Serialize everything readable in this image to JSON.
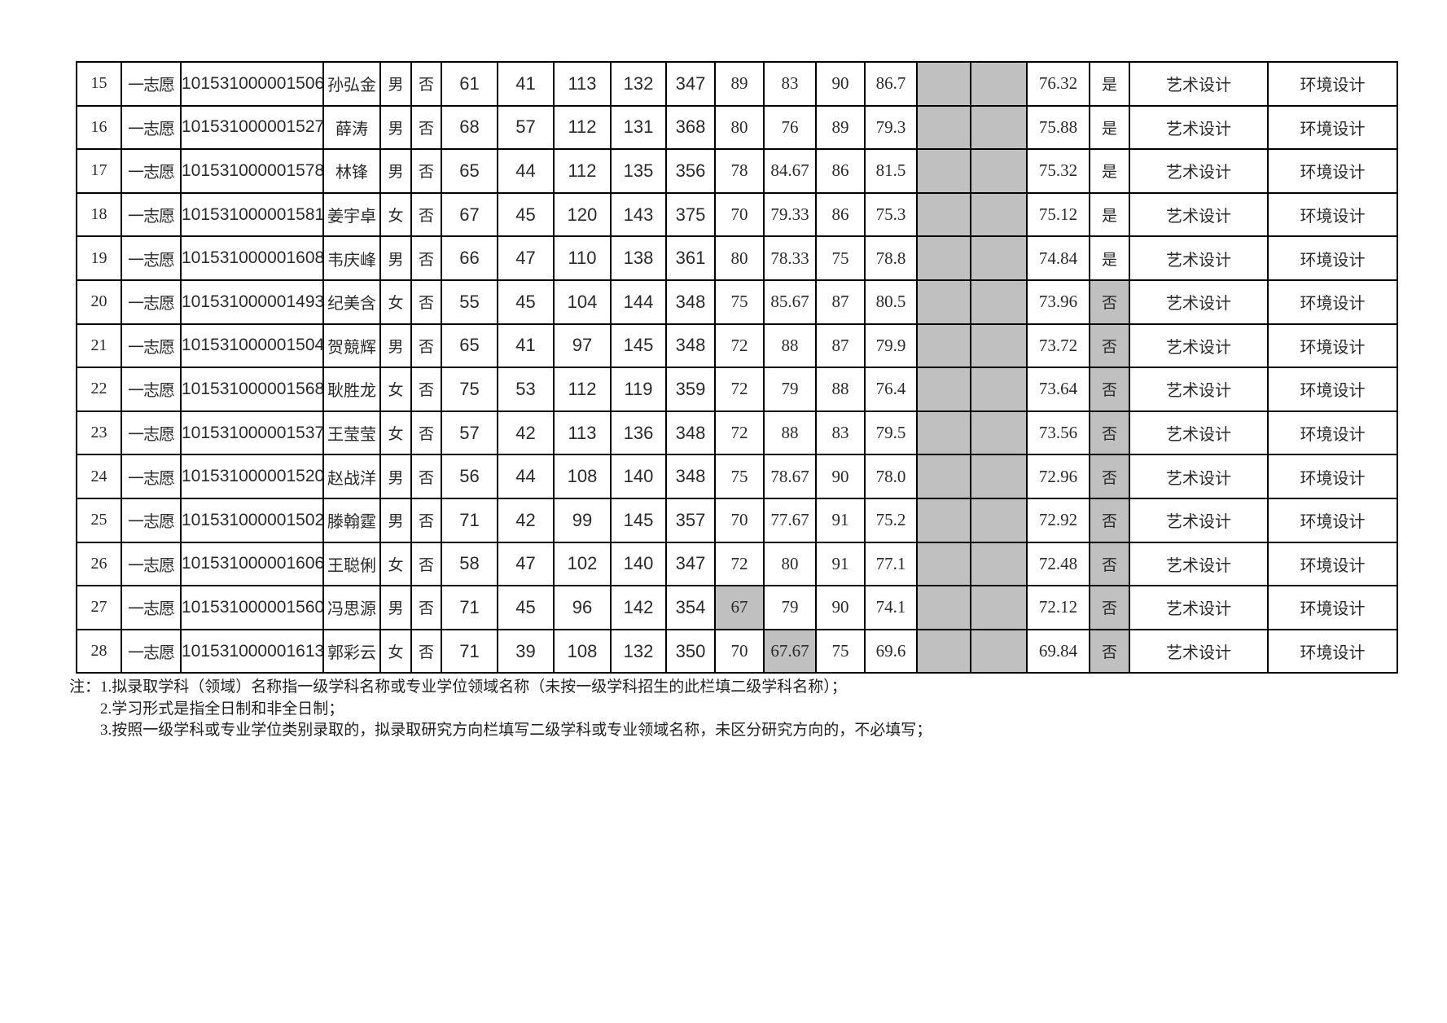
{
  "colors": {
    "cell_highlight": "#c0c0c0",
    "border": "#000000",
    "background": "#ffffff"
  },
  "table": {
    "rows": [
      {
        "no": "15",
        "volunteer": "一志愿",
        "candidate_id": "101531000001506",
        "name": "孙弘金",
        "gender": "男",
        "exempt": "否",
        "initial_scores": [
          "61",
          "41",
          "113",
          "132"
        ],
        "total": "347",
        "reexam_scores": [
          "89",
          "83",
          "90",
          "86.7"
        ],
        "extra": [
          "",
          ""
        ],
        "weighted_total": "76.32",
        "admitted": "是",
        "admitted_highlight": false,
        "reexam_highlight": [],
        "major": "艺术设计",
        "research_direction": "环境设计"
      },
      {
        "no": "16",
        "volunteer": "一志愿",
        "candidate_id": "101531000001527",
        "name": "薛涛",
        "gender": "男",
        "exempt": "否",
        "initial_scores": [
          "68",
          "57",
          "112",
          "131"
        ],
        "total": "368",
        "reexam_scores": [
          "80",
          "76",
          "89",
          "79.3"
        ],
        "extra": [
          "",
          ""
        ],
        "weighted_total": "75.88",
        "admitted": "是",
        "admitted_highlight": false,
        "reexam_highlight": [],
        "major": "艺术设计",
        "research_direction": "环境设计"
      },
      {
        "no": "17",
        "volunteer": "一志愿",
        "candidate_id": "101531000001578",
        "name": "林锋",
        "gender": "男",
        "exempt": "否",
        "initial_scores": [
          "65",
          "44",
          "112",
          "135"
        ],
        "total": "356",
        "reexam_scores": [
          "78",
          "84.67",
          "86",
          "81.5"
        ],
        "extra": [
          "",
          ""
        ],
        "weighted_total": "75.32",
        "admitted": "是",
        "admitted_highlight": false,
        "reexam_highlight": [],
        "major": "艺术设计",
        "research_direction": "环境设计"
      },
      {
        "no": "18",
        "volunteer": "一志愿",
        "candidate_id": "101531000001581",
        "name": "姜宇卓",
        "gender": "女",
        "exempt": "否",
        "initial_scores": [
          "67",
          "45",
          "120",
          "143"
        ],
        "total": "375",
        "reexam_scores": [
          "70",
          "79.33",
          "86",
          "75.3"
        ],
        "extra": [
          "",
          ""
        ],
        "weighted_total": "75.12",
        "admitted": "是",
        "admitted_highlight": false,
        "reexam_highlight": [],
        "major": "艺术设计",
        "research_direction": "环境设计"
      },
      {
        "no": "19",
        "volunteer": "一志愿",
        "candidate_id": "101531000001608",
        "name": "韦庆峰",
        "gender": "男",
        "exempt": "否",
        "initial_scores": [
          "66",
          "47",
          "110",
          "138"
        ],
        "total": "361",
        "reexam_scores": [
          "80",
          "78.33",
          "75",
          "78.8"
        ],
        "extra": [
          "",
          ""
        ],
        "weighted_total": "74.84",
        "admitted": "是",
        "admitted_highlight": false,
        "reexam_highlight": [],
        "major": "艺术设计",
        "research_direction": "环境设计"
      },
      {
        "no": "20",
        "volunteer": "一志愿",
        "candidate_id": "101531000001493",
        "name": "纪美含",
        "gender": "女",
        "exempt": "否",
        "initial_scores": [
          "55",
          "45",
          "104",
          "144"
        ],
        "total": "348",
        "reexam_scores": [
          "75",
          "85.67",
          "87",
          "80.5"
        ],
        "extra": [
          "",
          ""
        ],
        "weighted_total": "73.96",
        "admitted": "否",
        "admitted_highlight": true,
        "reexam_highlight": [],
        "major": "艺术设计",
        "research_direction": "环境设计"
      },
      {
        "no": "21",
        "volunteer": "一志愿",
        "candidate_id": "101531000001504",
        "name": "贺競辉",
        "gender": "男",
        "exempt": "否",
        "initial_scores": [
          "65",
          "41",
          "97",
          "145"
        ],
        "total": "348",
        "reexam_scores": [
          "72",
          "88",
          "87",
          "79.9"
        ],
        "extra": [
          "",
          ""
        ],
        "weighted_total": "73.72",
        "admitted": "否",
        "admitted_highlight": true,
        "reexam_highlight": [],
        "major": "艺术设计",
        "research_direction": "环境设计"
      },
      {
        "no": "22",
        "volunteer": "一志愿",
        "candidate_id": "101531000001568",
        "name": "耿胜龙",
        "gender": "女",
        "exempt": "否",
        "initial_scores": [
          "75",
          "53",
          "112",
          "119"
        ],
        "total": "359",
        "reexam_scores": [
          "72",
          "79",
          "88",
          "76.4"
        ],
        "extra": [
          "",
          ""
        ],
        "weighted_total": "73.64",
        "admitted": "否",
        "admitted_highlight": true,
        "reexam_highlight": [],
        "major": "艺术设计",
        "research_direction": "环境设计"
      },
      {
        "no": "23",
        "volunteer": "一志愿",
        "candidate_id": "101531000001537",
        "name": "王莹莹",
        "gender": "女",
        "exempt": "否",
        "initial_scores": [
          "57",
          "42",
          "113",
          "136"
        ],
        "total": "348",
        "reexam_scores": [
          "72",
          "88",
          "83",
          "79.5"
        ],
        "extra": [
          "",
          ""
        ],
        "weighted_total": "73.56",
        "admitted": "否",
        "admitted_highlight": true,
        "reexam_highlight": [],
        "major": "艺术设计",
        "research_direction": "环境设计"
      },
      {
        "no": "24",
        "volunteer": "一志愿",
        "candidate_id": "101531000001520",
        "name": "赵战洋",
        "gender": "男",
        "exempt": "否",
        "initial_scores": [
          "56",
          "44",
          "108",
          "140"
        ],
        "total": "348",
        "reexam_scores": [
          "75",
          "78.67",
          "90",
          "78.0"
        ],
        "extra": [
          "",
          ""
        ],
        "weighted_total": "72.96",
        "admitted": "否",
        "admitted_highlight": true,
        "reexam_highlight": [],
        "major": "艺术设计",
        "research_direction": "环境设计"
      },
      {
        "no": "25",
        "volunteer": "一志愿",
        "candidate_id": "101531000001502",
        "name": "滕翰霆",
        "gender": "男",
        "exempt": "否",
        "initial_scores": [
          "71",
          "42",
          "99",
          "145"
        ],
        "total": "357",
        "reexam_scores": [
          "70",
          "77.67",
          "91",
          "75.2"
        ],
        "extra": [
          "",
          ""
        ],
        "weighted_total": "72.92",
        "admitted": "否",
        "admitted_highlight": true,
        "reexam_highlight": [],
        "major": "艺术设计",
        "research_direction": "环境设计"
      },
      {
        "no": "26",
        "volunteer": "一志愿",
        "candidate_id": "101531000001606",
        "name": "王聪俐",
        "gender": "女",
        "exempt": "否",
        "initial_scores": [
          "58",
          "47",
          "102",
          "140"
        ],
        "total": "347",
        "reexam_scores": [
          "72",
          "80",
          "91",
          "77.1"
        ],
        "extra": [
          "",
          ""
        ],
        "weighted_total": "72.48",
        "admitted": "否",
        "admitted_highlight": true,
        "reexam_highlight": [],
        "major": "艺术设计",
        "research_direction": "环境设计"
      },
      {
        "no": "27",
        "volunteer": "一志愿",
        "candidate_id": "101531000001560",
        "name": "冯思源",
        "gender": "男",
        "exempt": "否",
        "initial_scores": [
          "71",
          "45",
          "96",
          "142"
        ],
        "total": "354",
        "reexam_scores": [
          "67",
          "79",
          "90",
          "74.1"
        ],
        "extra": [
          "",
          ""
        ],
        "weighted_total": "72.12",
        "admitted": "否",
        "admitted_highlight": true,
        "reexam_highlight": [
          0
        ],
        "major": "艺术设计",
        "research_direction": "环境设计"
      },
      {
        "no": "28",
        "volunteer": "一志愿",
        "candidate_id": "101531000001613",
        "name": "郭彩云",
        "gender": "女",
        "exempt": "否",
        "initial_scores": [
          "71",
          "39",
          "108",
          "132"
        ],
        "total": "350",
        "reexam_scores": [
          "70",
          "67.67",
          "75",
          "69.6"
        ],
        "extra": [
          "",
          ""
        ],
        "weighted_total": "69.84",
        "admitted": "否",
        "admitted_highlight": true,
        "reexam_highlight": [
          1
        ],
        "major": "艺术设计",
        "research_direction": "环境设计"
      }
    ]
  },
  "notes": {
    "prefix": "注：",
    "items": [
      "1.拟录取学科（领域）名称指一级学科名称或专业学位领域名称（未按一级学科招生的此栏填二级学科名称）；",
      "2.学习形式是指全日制和非全日制；",
      "3.按照一级学科或专业学位类别录取的，拟录取研究方向栏填写二级学科或专业领域名称，未区分研究方向的，不必填写；"
    ]
  }
}
